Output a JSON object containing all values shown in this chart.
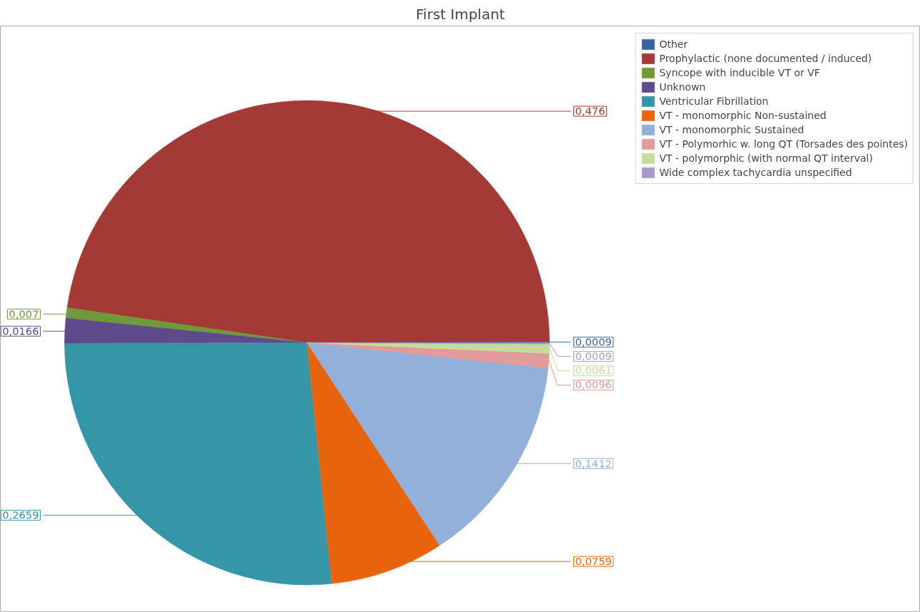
{
  "chart_data": {
    "type": "pie",
    "title": "First Implant",
    "categories": [
      "Other",
      "Prophylactic (none documented / induced)",
      "Syncope with inducible VT or VF",
      "Unknown",
      "Ventricular Fibrillation",
      "VT - monomorphic Non-sustained",
      "VT - monomorphic Sustained",
      "VT - Polymorhic w. long QT (Torsades des pointes)",
      "VT - polymorphic (with normal QT interval)",
      "Wide complex tachycardia unspecified"
    ],
    "values": [
      0.0009,
      0.476,
      0.007,
      0.0166,
      0.2659,
      0.0759,
      0.1412,
      0.0096,
      0.0061,
      0.0009
    ],
    "colors": [
      "#3a64a0",
      "#a33a36",
      "#6f9a3a",
      "#5e4a8a",
      "#3596a8",
      "#e8640c",
      "#92b0d9",
      "#e39a9a",
      "#c4dd9c",
      "#a899cc"
    ],
    "value_labels": [
      "0,0009",
      "0,476",
      "0,007",
      "0,0166",
      "0,2659",
      "0,0759",
      "0,1412",
      "0,0096",
      "0,0061",
      "0,0009"
    ],
    "legend": "top right"
  }
}
